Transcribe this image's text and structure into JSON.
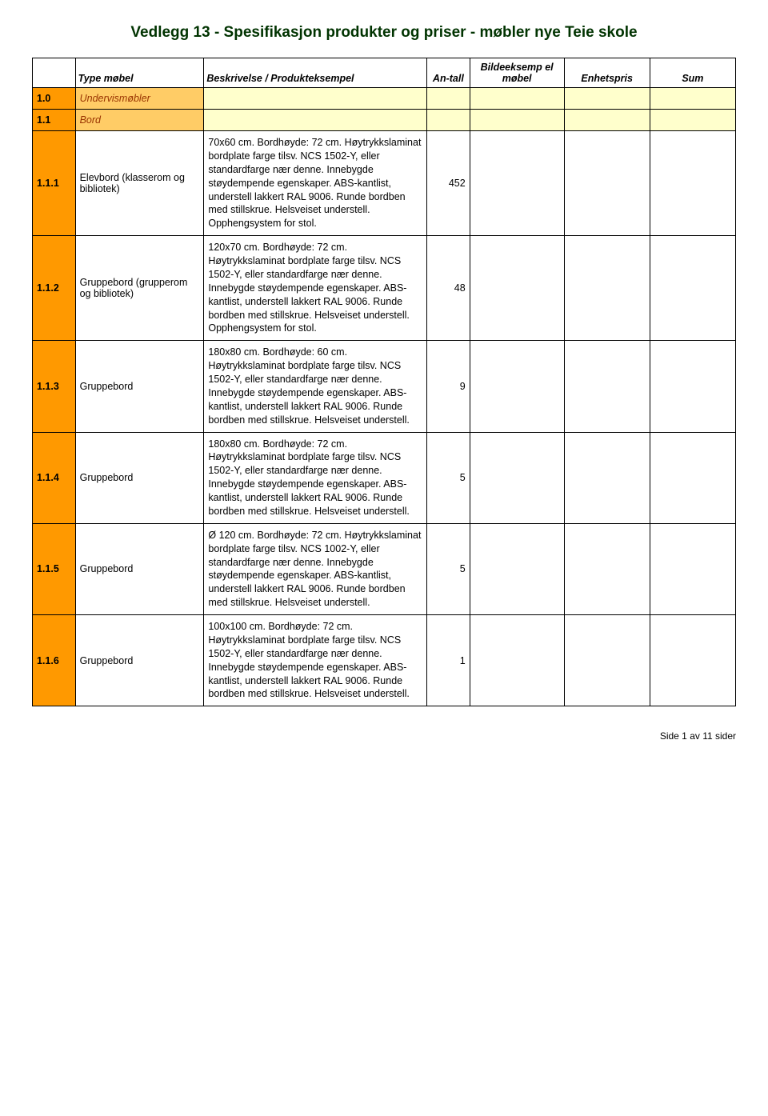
{
  "title": "Vedlegg 13 - Spesifikasjon produkter og priser - møbler nye Teie skole",
  "headers": {
    "id": "",
    "type": "Type møbel",
    "desc": "Beskrivelse / Produkteksempel",
    "antall": "An-tall",
    "image": "Bildeeksemp el møbel",
    "price": "Enhetspris",
    "sum": "Sum"
  },
  "colors": {
    "title_color": "#003300",
    "id_bg": "#ff9900",
    "section_label_bg": "#ffcc66",
    "section_label_color": "#993300",
    "section_rest_bg": "#ffffcc",
    "border": "#000000"
  },
  "sections": [
    {
      "id": "1.0",
      "label": "Undervismøbler"
    },
    {
      "id": "1.1",
      "label": "Bord"
    }
  ],
  "rows": [
    {
      "id": "1.1.1",
      "type": "Elevbord (klasserom og bibliotek)",
      "desc": "70x60 cm. Bordhøyde: 72 cm. Høytrykkslaminat bordplate farge tilsv. NCS 1502-Y, eller standardfarge nær denne. Innebygde støydempende egenskaper. ABS-kantlist, understell lakkert RAL 9006. Runde bordben med stillskrue. Helsveiset understell. Opphengsystem for stol.",
      "antall": "452"
    },
    {
      "id": "1.1.2",
      "type": "Gruppebord (grupperom og bibliotek)",
      "desc": "120x70 cm. Bordhøyde: 72 cm. Høytrykkslaminat bordplate farge tilsv. NCS 1502-Y, eller standardfarge nær denne. Innebygde støydempende egenskaper. ABS-kantlist, understell lakkert RAL 9006. Runde bordben med stillskrue. Helsveiset understell. Opphengsystem for stol.",
      "antall": "48"
    },
    {
      "id": "1.1.3",
      "type": "Gruppebord",
      "desc": "180x80 cm. Bordhøyde: 60 cm. Høytrykkslaminat bordplate farge tilsv. NCS 1502-Y, eller standardfarge nær denne. Innebygde støydempende egenskaper. ABS-kantlist, understell lakkert RAL 9006. Runde bordben med stillskrue. Helsveiset understell.",
      "antall": "9"
    },
    {
      "id": "1.1.4",
      "type": "Gruppebord",
      "desc": "180x80 cm. Bordhøyde: 72 cm. Høytrykkslaminat bordplate farge tilsv. NCS 1502-Y, eller standardfarge nær denne. Innebygde støydempende egenskaper. ABS-kantlist, understell lakkert RAL 9006. Runde bordben med stillskrue. Helsveiset understell.",
      "antall": "5"
    },
    {
      "id": "1.1.5",
      "type": "Gruppebord",
      "desc": "Ø 120 cm. Bordhøyde: 72 cm. Høytrykkslaminat bordplate farge tilsv. NCS 1002-Y, eller standardfarge nær denne. Innebygde støydempende egenskaper. ABS-kantlist, understell lakkert RAL 9006. Runde bordben med stillskrue. Helsveiset understell.",
      "antall": "5"
    },
    {
      "id": "1.1.6",
      "type": "Gruppebord",
      "desc": "100x100 cm. Bordhøyde: 72 cm. Høytrykkslaminat bordplate farge tilsv. NCS 1502-Y, eller standardfarge nær denne. Innebygde støydempende egenskaper. ABS-kantlist, understell lakkert RAL 9006. Runde bordben med stillskrue. Helsveiset understell.",
      "antall": "1"
    }
  ],
  "footer": "Side 1 av 11 sider"
}
